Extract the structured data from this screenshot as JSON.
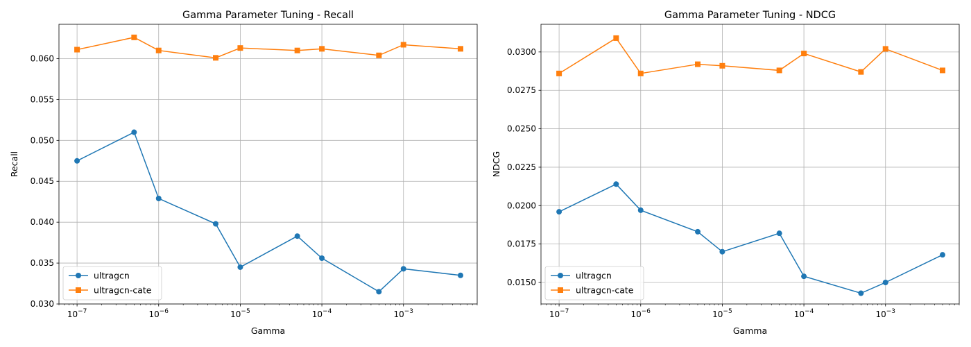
{
  "chart_data": [
    {
      "type": "line",
      "title": "Gamma Parameter Tuning - Recall",
      "xlabel": "Gamma",
      "ylabel": "Recall",
      "xscale": "log",
      "xlim": [
        6e-08,
        0.008
      ],
      "ylim": [
        0.03,
        0.0642
      ],
      "xticks": [
        1e-07,
        1e-06,
        1e-05,
        0.0001,
        0.001
      ],
      "xtick_labels": [
        [
          "10",
          "−7"
        ],
        [
          "10",
          "−6"
        ],
        [
          "10",
          "−5"
        ],
        [
          "10",
          "−4"
        ],
        [
          "10",
          "−3"
        ]
      ],
      "yticks": [
        0.03,
        0.035,
        0.04,
        0.045,
        0.05,
        0.055,
        0.06
      ],
      "ytick_labels": [
        "0.030",
        "0.035",
        "0.040",
        "0.045",
        "0.050",
        "0.055",
        "0.060"
      ],
      "grid": true,
      "legend": "lower left",
      "x": [
        1e-07,
        5e-07,
        1e-06,
        5e-06,
        1e-05,
        5e-05,
        0.0001,
        0.0005,
        0.001,
        0.005
      ],
      "series": [
        {
          "name": "ultragcn",
          "color": "#1f77b4",
          "marker": "circle",
          "values": [
            0.0475,
            0.051,
            0.0429,
            0.0398,
            0.0345,
            0.0383,
            0.0356,
            0.0315,
            0.0343,
            0.0335
          ]
        },
        {
          "name": "ultragcn-cate",
          "color": "#ff7f0e",
          "marker": "square",
          "values": [
            0.0611,
            0.0626,
            0.061,
            0.0601,
            0.0613,
            0.061,
            0.0612,
            0.0604,
            0.0617,
            0.0612
          ]
        }
      ]
    },
    {
      "type": "line",
      "title": "Gamma Parameter Tuning - NDCG",
      "xlabel": "Gamma",
      "ylabel": "NDCG",
      "xscale": "log",
      "xlim": [
        6e-08,
        0.008
      ],
      "ylim": [
        0.0136,
        0.0318
      ],
      "xticks": [
        1e-07,
        1e-06,
        1e-05,
        0.0001,
        0.001
      ],
      "xtick_labels": [
        [
          "10",
          "−7"
        ],
        [
          "10",
          "−6"
        ],
        [
          "10",
          "−5"
        ],
        [
          "10",
          "−4"
        ],
        [
          "10",
          "−3"
        ]
      ],
      "yticks": [
        0.015,
        0.0175,
        0.02,
        0.0225,
        0.025,
        0.0275,
        0.03
      ],
      "ytick_labels": [
        "0.0150",
        "0.0175",
        "0.0200",
        "0.0225",
        "0.0250",
        "0.0275",
        "0.0300"
      ],
      "grid": true,
      "legend": "lower left",
      "x": [
        1e-07,
        5e-07,
        1e-06,
        5e-06,
        1e-05,
        5e-05,
        0.0001,
        0.0005,
        0.001,
        0.005
      ],
      "series": [
        {
          "name": "ultragcn",
          "color": "#1f77b4",
          "marker": "circle",
          "values": [
            0.0196,
            0.0214,
            0.0197,
            0.0183,
            0.017,
            0.0182,
            0.0154,
            0.0143,
            0.015,
            0.0168
          ]
        },
        {
          "name": "ultragcn-cate",
          "color": "#ff7f0e",
          "marker": "square",
          "values": [
            0.0286,
            0.0309,
            0.0286,
            0.0292,
            0.0291,
            0.0288,
            0.0299,
            0.0287,
            0.0302,
            0.0288
          ]
        }
      ]
    }
  ]
}
